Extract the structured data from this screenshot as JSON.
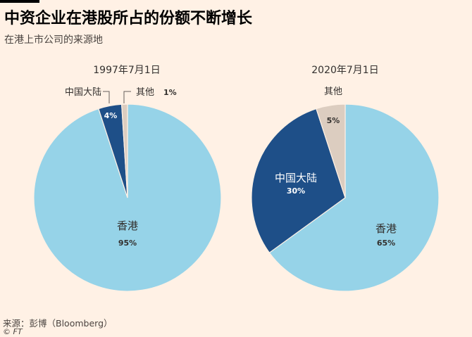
{
  "header": {
    "title": "中资企业在港股所占的份额不断增长",
    "subtitle": "在港上市公司的来源地"
  },
  "footer": {
    "source": "来源：彭博（Bloomberg）",
    "credit": "© FT"
  },
  "colors": {
    "hongkong": "#96d3e8",
    "mainland": "#1e4f88",
    "other": "#dccdc0",
    "background": "#fff1e5"
  },
  "chart_data": [
    {
      "type": "pie",
      "title": "1997年7月1日",
      "legend": "none",
      "slices": [
        {
          "name": "香港",
          "value": 95,
          "label": "95%"
        },
        {
          "name": "中国大陆",
          "value": 4,
          "label": "4%"
        },
        {
          "name": "其他",
          "value": 1,
          "label": "1%"
        }
      ]
    },
    {
      "type": "pie",
      "title": "2020年7月1日",
      "legend": "none",
      "slices": [
        {
          "name": "香港",
          "value": 65,
          "label": "65%"
        },
        {
          "name": "中国大陆",
          "value": 30,
          "label": "30%"
        },
        {
          "name": "其他",
          "value": 5,
          "label": "5%"
        }
      ]
    }
  ]
}
